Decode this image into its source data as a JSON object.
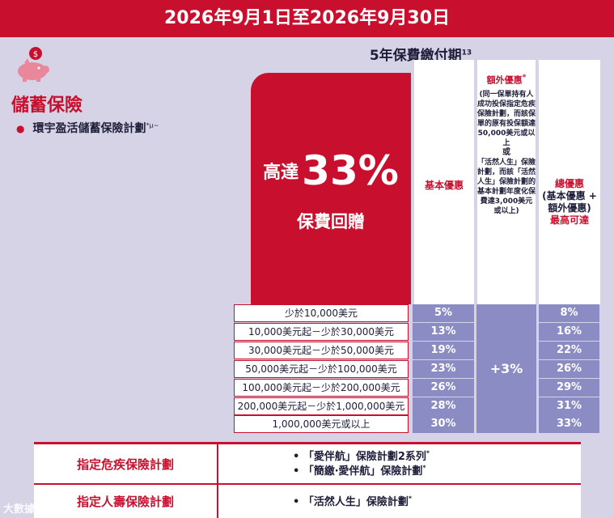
{
  "banner": {
    "period": "2026年9月1日至2026年9月30日"
  },
  "term": {
    "label": "5年保費繳付期",
    "note": "13"
  },
  "section": {
    "title": "儲蓄保險",
    "plan": "環宇盈活儲蓄保險計劃",
    "plan_marks": "*µ~"
  },
  "hero": {
    "prefix": "高達",
    "rate": "33%",
    "subtitle": "保費回贈"
  },
  "columns": {
    "basic": "基本優惠",
    "extra_title": "額外優惠",
    "extra_mark": "*",
    "extra_body_1": "(同一保單持有人成功投保指定危疾保險計劃，而該保單的原有投保額達50,000美元或以上",
    "extra_or": "或",
    "extra_body_2": "「活然人生」保險計劃，而該「活然人生」保險計劃的基本計劃年度化保費達3,000美元或以上)",
    "total_title": "總優惠",
    "total_sub": "(基本優惠 + 額外優惠)",
    "total_max": "最高可達"
  },
  "tiers": [
    {
      "range": "少於10,000美元",
      "basic": "5%",
      "total": "8%"
    },
    {
      "range": "10,000美元起－少於30,000美元",
      "basic": "13%",
      "total": "16%"
    },
    {
      "range": "30,000美元起－少於50,000美元",
      "basic": "19%",
      "total": "22%"
    },
    {
      "range": "50,000美元起－少於100,000美元",
      "basic": "23%",
      "total": "26%"
    },
    {
      "range": "100,000美元起－少於200,000美元",
      "basic": "26%",
      "total": "29%"
    },
    {
      "range": "200,000美元起－少於1,000,000美元",
      "basic": "28%",
      "total": "31%"
    },
    {
      "range": "1,000,000美元或以上",
      "basic": "30%",
      "total": "33%"
    }
  ],
  "extra_value": "+3%",
  "bottom": {
    "ci_label": "指定危疾保險計劃",
    "ci_plan_1": "「愛伴航」保險計劃2系列",
    "ci_plan_2": "「簡繳‧愛伴航」保險計劃",
    "life_label": "指定人壽保險計劃",
    "life_plan": "「活然人生」保險計劃",
    "mark": "*"
  },
  "watermark": "大數據",
  "colors": {
    "accent": "#c8102e",
    "tier_fill": "#8c8cc4",
    "background": "#d6d3e6"
  }
}
